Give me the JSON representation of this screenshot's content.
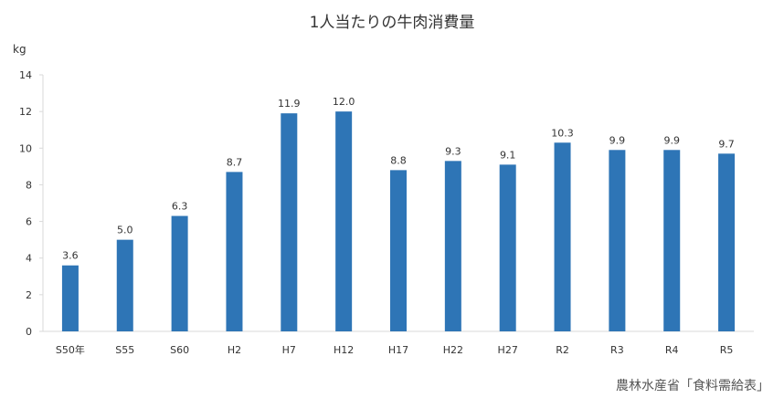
{
  "chart_data": {
    "type": "bar",
    "title": "1人当たりの牛肉消費量",
    "ylabel": "kg",
    "categories": [
      "S50年",
      "S55",
      "S60",
      "H2",
      "H7",
      "H12",
      "H17",
      "H22",
      "H27",
      "R2",
      "R3",
      "R4",
      "R5"
    ],
    "values": [
      3.6,
      5.0,
      6.3,
      8.7,
      11.9,
      12.0,
      8.8,
      9.3,
      9.1,
      10.3,
      9.9,
      9.9,
      9.7
    ],
    "value_labels": [
      "3.6",
      "5.0",
      "6.3",
      "8.7",
      "11.9",
      "12.0",
      "8.8",
      "9.3",
      "9.1",
      "10.3",
      "9.9",
      "9.9",
      "9.7"
    ],
    "ylim": [
      0,
      14
    ],
    "yticks": [
      0,
      2,
      4,
      6,
      8,
      10,
      12,
      14
    ],
    "grid": false,
    "legend": "none",
    "bar_color": "#2E75B6",
    "axis_color": "#D9D9D9"
  },
  "source": "農林水産省「食料需給表」"
}
